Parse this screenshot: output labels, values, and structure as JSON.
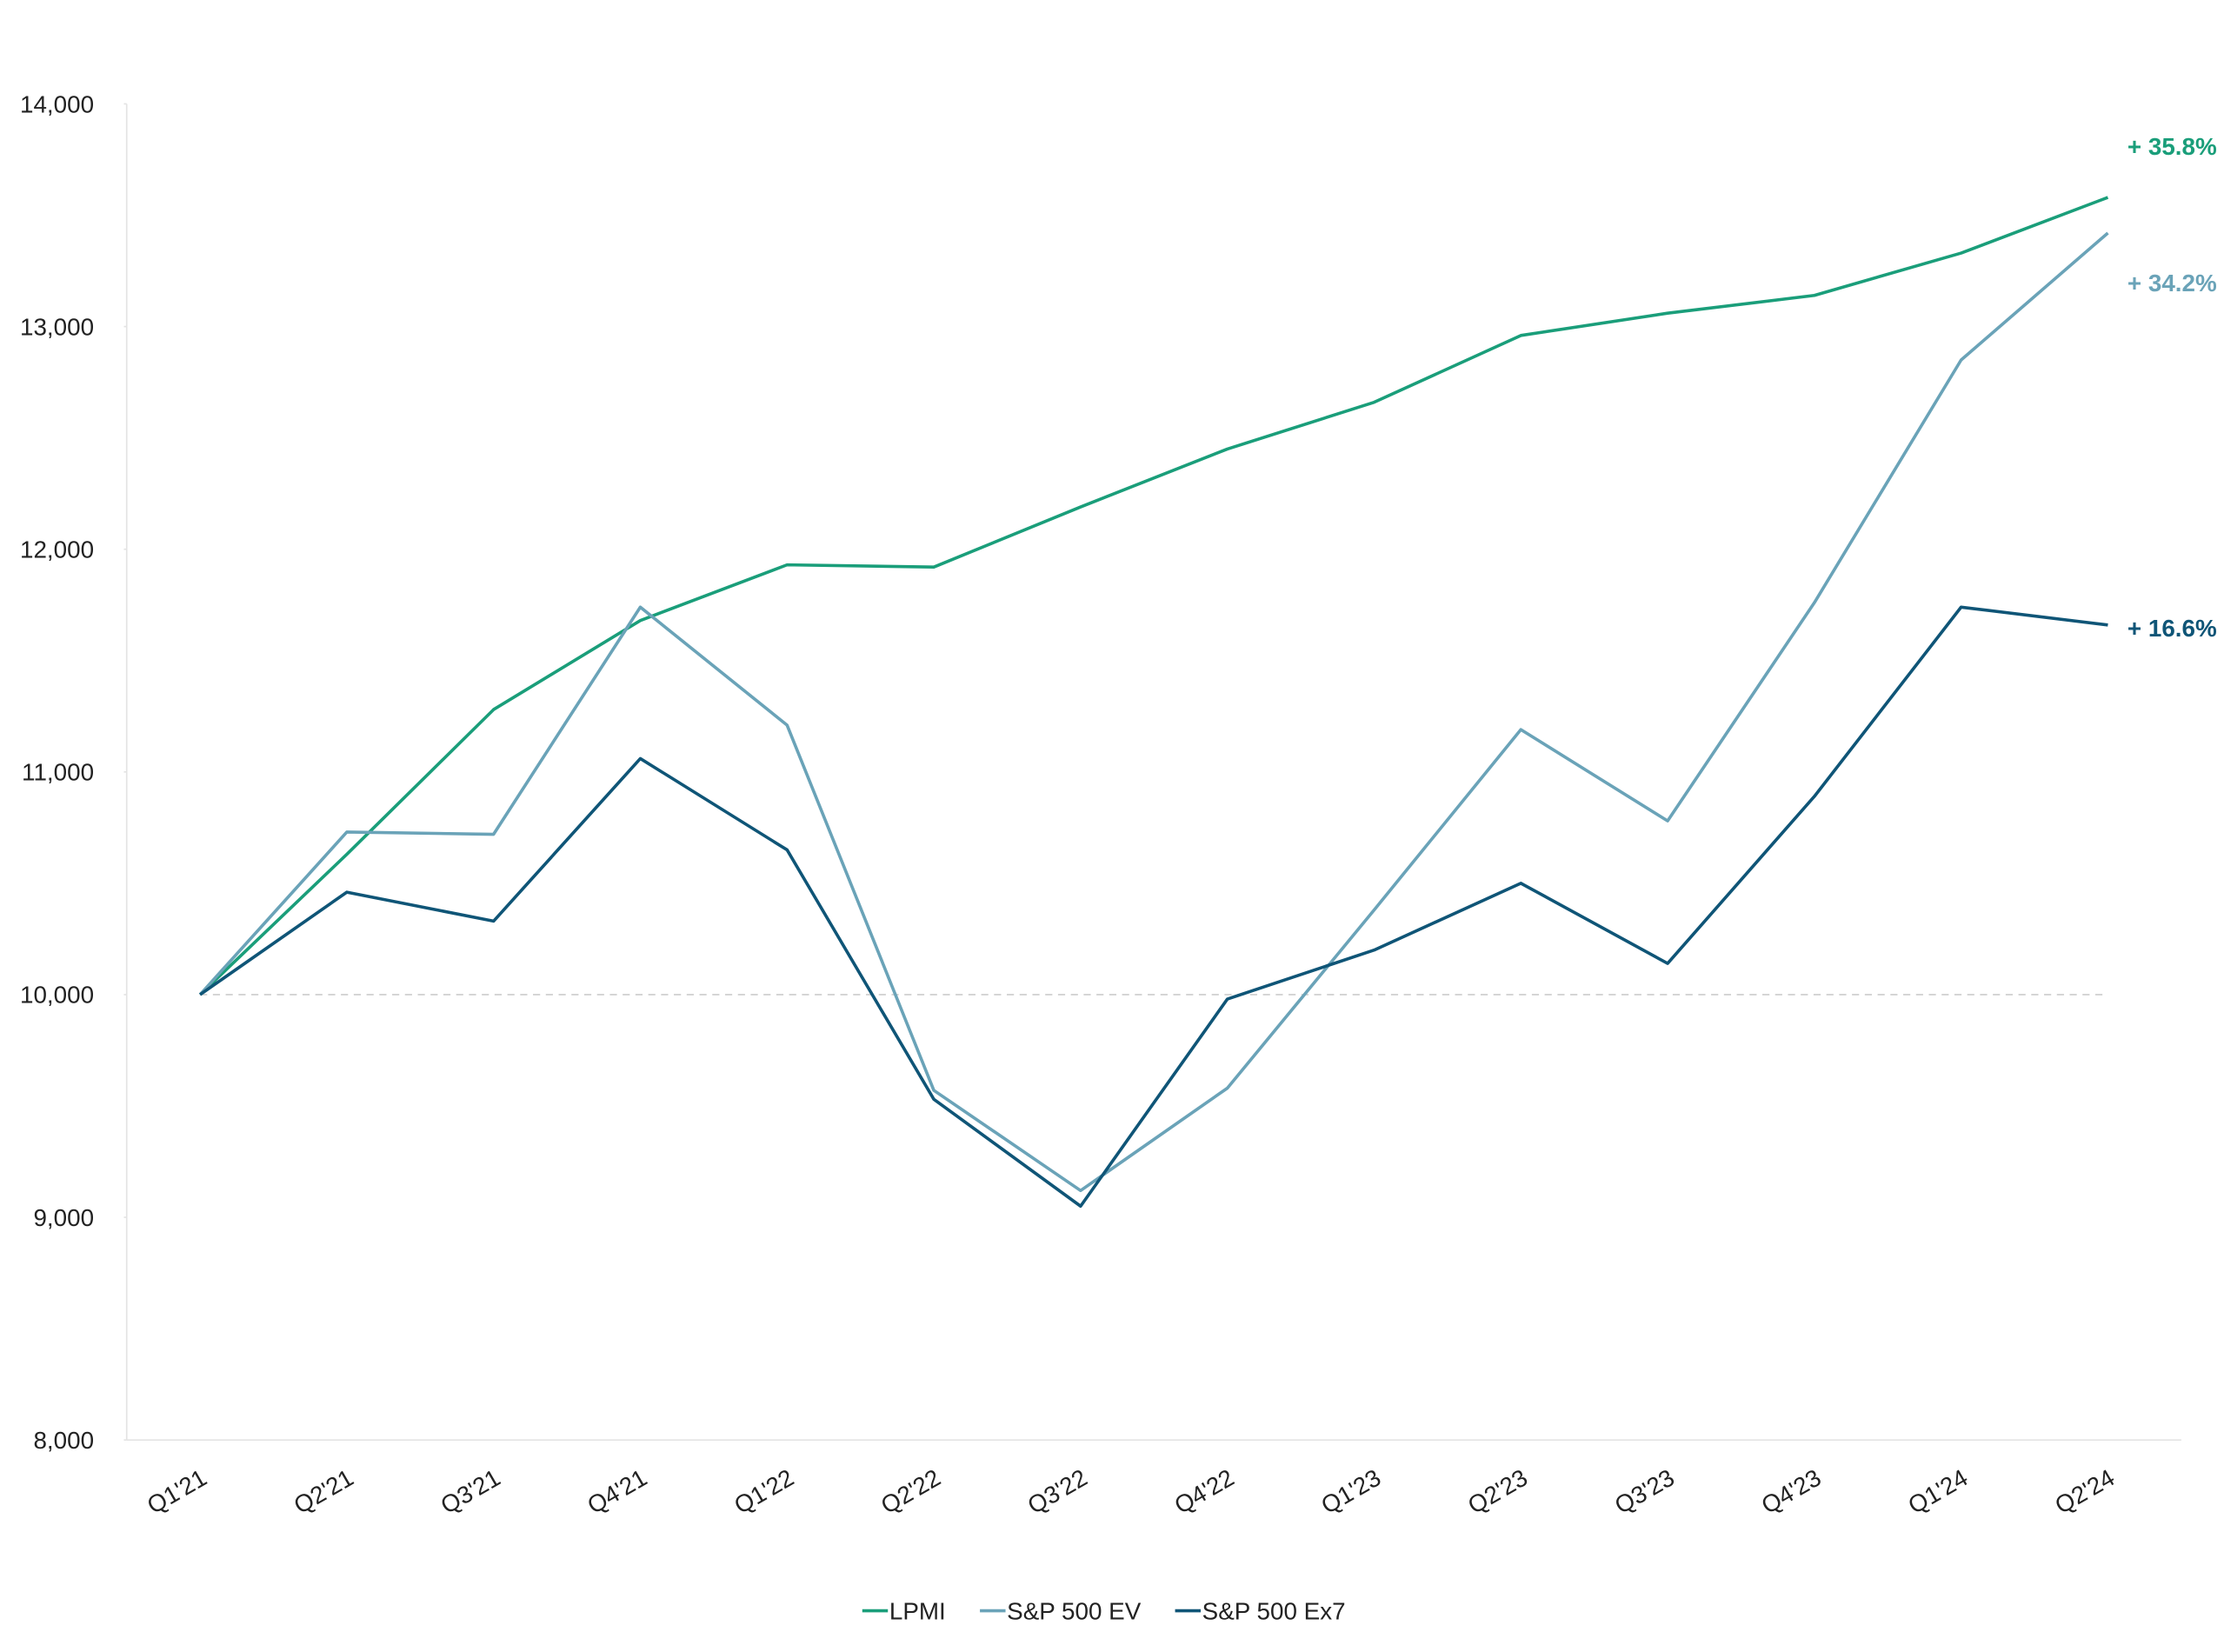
{
  "chart_data": {
    "type": "line",
    "categories": [
      "Q1'21",
      "Q2'21",
      "Q3'21",
      "Q4'21",
      "Q1'22",
      "Q2'22",
      "Q3'22",
      "Q4'22",
      "Q1'23",
      "Q2'23",
      "Q3'23",
      "Q4'23",
      "Q1'24",
      "Q2'24"
    ],
    "series": [
      {
        "name": "LPMI",
        "color": "#1a9e7a",
        "values": [
          10000,
          10630,
          11280,
          11680,
          11930,
          11920,
          12190,
          12450,
          12660,
          12960,
          13060,
          13140,
          13330,
          13580
        ],
        "annotation": "+ 35.8%"
      },
      {
        "name": "S&P 500 EV",
        "color": "#6aa3b8",
        "values": [
          10000,
          10730,
          10720,
          11740,
          11210,
          9570,
          9120,
          9580,
          10380,
          11190,
          10780,
          11760,
          12850,
          13420
        ],
        "annotation": "+ 34.2%"
      },
      {
        "name": "S&P 500 Ex7",
        "color": "#0f5577",
        "values": [
          10000,
          10460,
          10330,
          11060,
          10650,
          9530,
          9050,
          9980,
          10200,
          10500,
          10140,
          10890,
          11740,
          11660
        ],
        "annotation": "+ 16.6%"
      }
    ],
    "ylim": [
      8000,
      14000
    ],
    "yticks": [
      {
        "value": 8000,
        "label": "8,000"
      },
      {
        "value": 9000,
        "label": "9,000"
      },
      {
        "value": 10000,
        "label": "10,000"
      },
      {
        "value": 11000,
        "label": "11,000"
      },
      {
        "value": 12000,
        "label": "12,000"
      },
      {
        "value": 13000,
        "label": "13,000"
      },
      {
        "value": 14000,
        "label": "14,000"
      }
    ],
    "reference_line": 10000,
    "grid": false,
    "legend": "bottom"
  }
}
